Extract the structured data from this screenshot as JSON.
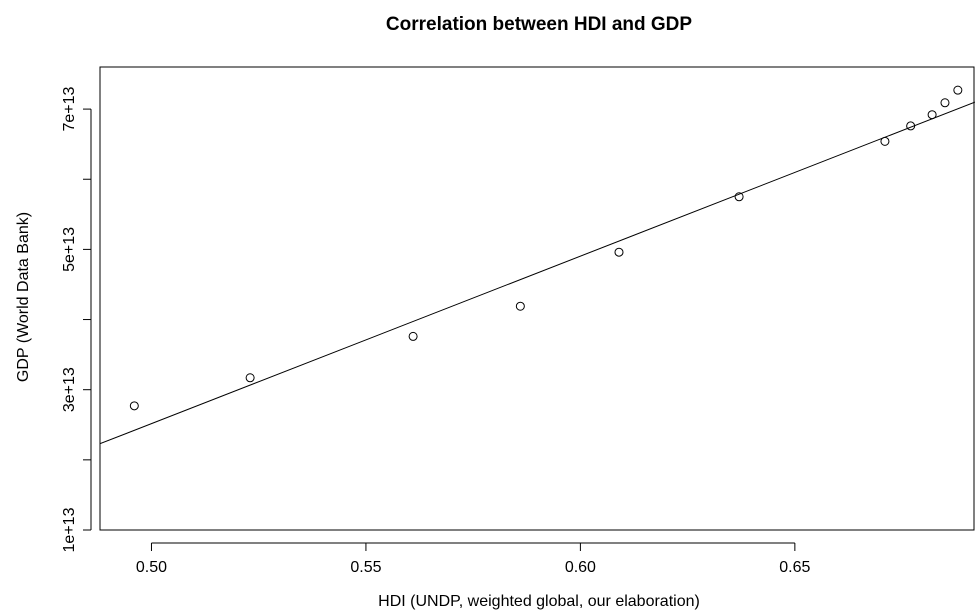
{
  "chart_data": {
    "type": "scatter",
    "title": "Correlation between HDI and GDP",
    "xlabel": "HDI (UNDP, weighted global, our elaboration)",
    "ylabel": "GDP (World Data Bank)",
    "xlim": [
      0.488,
      0.692
    ],
    "ylim": [
      10000000000000.0,
      76000000000000.0
    ],
    "x_ticks": [
      0.5,
      0.55,
      0.6,
      0.65
    ],
    "x_tick_labels": [
      "0.50",
      "0.55",
      "0.60",
      "0.65"
    ],
    "y_ticks": [
      10000000000000.0,
      20000000000000.0,
      30000000000000.0,
      40000000000000.0,
      50000000000000.0,
      60000000000000.0,
      70000000000000.0
    ],
    "y_tick_labels": [
      "1e+13",
      "",
      "3e+13",
      "",
      "5e+13",
      "",
      "7e+13"
    ],
    "points": [
      {
        "x": 0.496,
        "y": 27700000000000.0
      },
      {
        "x": 0.523,
        "y": 31700000000000.0
      },
      {
        "x": 0.561,
        "y": 37600000000000.0
      },
      {
        "x": 0.586,
        "y": 41900000000000.0
      },
      {
        "x": 0.609,
        "y": 49600000000000.0
      },
      {
        "x": 0.637,
        "y": 57500000000000.0
      },
      {
        "x": 0.671,
        "y": 65400000000000.0
      },
      {
        "x": 0.677,
        "y": 67600000000000.0
      },
      {
        "x": 0.682,
        "y": 69200000000000.0
      },
      {
        "x": 0.685,
        "y": 70900000000000.0
      },
      {
        "x": 0.688,
        "y": 72700000000000.0
      }
    ],
    "fit_line": {
      "x": [
        0.488,
        0.692
      ],
      "y": [
        22300000000000.0,
        71000000000000.0
      ]
    },
    "marker": "open-circle",
    "grid": false,
    "legend": "none"
  }
}
